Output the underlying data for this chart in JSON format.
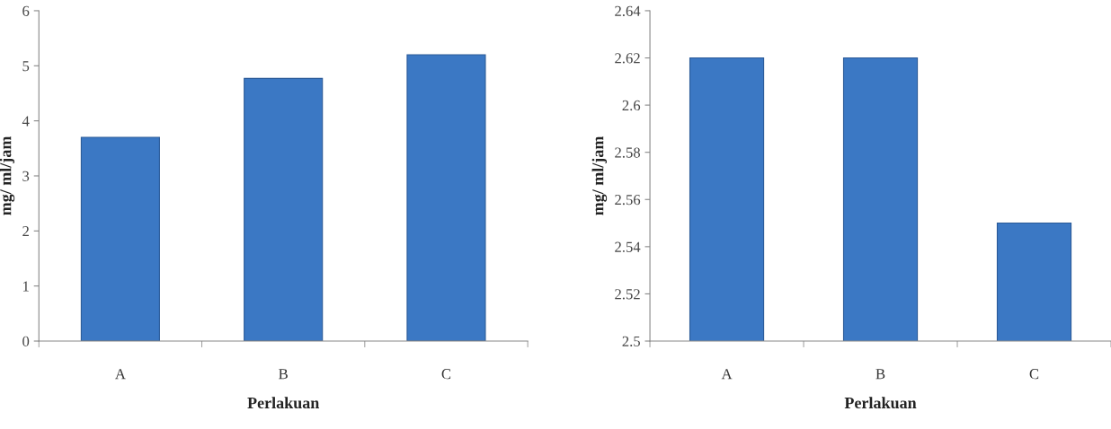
{
  "chart_data": [
    {
      "type": "bar",
      "categories": [
        "A",
        "B",
        "C"
      ],
      "values": [
        3.7,
        4.77,
        5.2
      ],
      "color": "#3b78c4",
      "xlabel": "Perlakuan",
      "ylabel": "mg/ ml/jam",
      "ylim": [
        0,
        6
      ],
      "yticks": [
        0,
        1,
        2,
        3,
        4,
        5,
        6
      ],
      "grid": false
    },
    {
      "type": "bar",
      "categories": [
        "A",
        "B",
        "C"
      ],
      "values": [
        2.62,
        2.62,
        2.55
      ],
      "color": "#3b78c4",
      "xlabel": "Perlakuan",
      "ylabel": "mg/ ml/jam",
      "ylim": [
        2.5,
        2.64
      ],
      "yticks": [
        {
          "value": 2.5,
          "label": "2.5"
        },
        {
          "value": 2.52,
          "label": "2.52"
        },
        {
          "value": 2.54,
          "label": "2.54"
        },
        {
          "value": 2.56,
          "label": "2.56"
        },
        {
          "value": 2.58,
          "label": "2.58"
        },
        {
          "value": 2.6,
          "label": "2.6"
        },
        {
          "value": 2.62,
          "label": "2.62"
        },
        {
          "value": 2.64,
          "label": "2.64"
        }
      ],
      "grid": false
    }
  ]
}
